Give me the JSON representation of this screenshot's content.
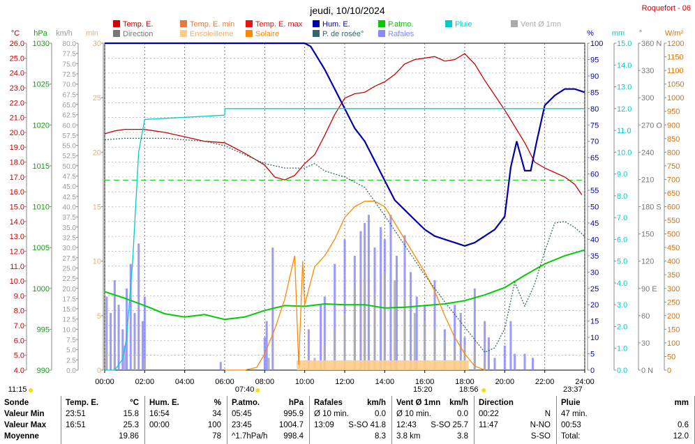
{
  "title": "jeudi, 10/10/2024",
  "station": "Roquefort - 06",
  "legend": [
    {
      "label": "Temp. E.",
      "color": "#cc0000"
    },
    {
      "label": "Temp. E. min",
      "color": "#e8783c"
    },
    {
      "label": "Temp. E. max",
      "color": "#ee1111"
    },
    {
      "label": "Hum. E.",
      "color": "#0000aa"
    },
    {
      "label": "P.atmo.",
      "color": "#00cc00"
    },
    {
      "label": "Pluie",
      "color": "#00cccc"
    },
    {
      "label": "Vent Ø 1mn",
      "color": "#aaaaaa"
    },
    {
      "label": "Direction",
      "color": "#777777"
    },
    {
      "label": "Ensoleilleme",
      "color": "#ffcc88"
    },
    {
      "label": "Solaire",
      "color": "#ff8800"
    },
    {
      "label": "P. de rosée°",
      "color": "#336666"
    },
    {
      "label": "Rafales",
      "color": "#8888ff"
    }
  ],
  "axis_units": {
    "temp": "°C",
    "pressure": "hPa",
    "wind": "km/h",
    "min": "min",
    "hum": "%",
    "rain": "mm",
    "dir": "°",
    "solar": "W/m²"
  },
  "chart_data": {
    "type": "line",
    "x_labels": [
      "00:00",
      "02:00",
      "04:00",
      "06:00",
      "08:00",
      "10:00",
      "12:00",
      "14:00",
      "16:00",
      "18:00",
      "20:00",
      "22:00",
      "24:00"
    ],
    "xlim": [
      0,
      24
    ],
    "axes": {
      "temp": {
        "ylim": [
          4,
          26
        ],
        "ticks": [
          "26.0",
          "25.0",
          "24.0",
          "23.0",
          "22.0",
          "21.0",
          "20.0",
          "19.0",
          "18.0",
          "17.0",
          "16.0",
          "15.0",
          "14.0",
          "13.0",
          "12.0",
          "11.0",
          "10.0",
          "9.0",
          "8.0",
          "7.0",
          "6.0",
          "5.0",
          "4.0"
        ]
      },
      "pressure": {
        "ylim": [
          990,
          1030
        ],
        "ticks": [
          "1030",
          "1025",
          "1020",
          "1015",
          "1010",
          "1005",
          "1000",
          "995",
          "990"
        ]
      },
      "wind": {
        "ylim": [
          0,
          80
        ],
        "ticks": [
          "80.0",
          "77.5",
          "75.0",
          "72.5",
          "70.0",
          "67.5",
          "65.0",
          "62.5",
          "60.0",
          "57.5",
          "55.0",
          "52.5",
          "50.0",
          "47.5",
          "45.0",
          "42.5",
          "40.0",
          "37.5",
          "35.0",
          "32.5",
          "30.0",
          "27.5",
          "25.0",
          "22.5",
          "20.0",
          "17.5",
          "15.0",
          "12.5",
          "10.0",
          "7.5",
          "5.0",
          "2.5",
          "0.0"
        ]
      },
      "minutes": {
        "ylim": [
          0,
          30
        ],
        "ticks": [
          "30",
          "25",
          "20",
          "15",
          "10",
          "5",
          "0"
        ]
      },
      "hum": {
        "ylim": [
          0,
          100
        ],
        "ticks": [
          "100",
          "95",
          "90",
          "85",
          "80",
          "75",
          "70",
          "65",
          "60",
          "55",
          "50",
          "45",
          "40",
          "35",
          "30",
          "25",
          "20",
          "15",
          "10",
          "5",
          "0"
        ]
      },
      "rain": {
        "ylim": [
          0,
          15
        ],
        "ticks": [
          "15.0",
          "14.0",
          "13.0",
          "12.0",
          "11.0",
          "10.0",
          "9.0",
          "8.0",
          "7.0",
          "6.0",
          "5.0",
          "4.0",
          "3.0",
          "2.0",
          "1.0",
          "0.0"
        ]
      },
      "dir": {
        "ylim": [
          0,
          360
        ],
        "ticks": [
          "360 N",
          "330",
          "300",
          "270 O",
          "240",
          "210",
          "180 S",
          "150",
          "120",
          "90 E",
          "60",
          "30",
          "0 N"
        ]
      },
      "solar": {
        "ylim": [
          0,
          1200
        ],
        "ticks": [
          "1200",
          "1150",
          "1100",
          "1050",
          "1000",
          "950",
          "900",
          "850",
          "800",
          "750",
          "700",
          "650",
          "600",
          "550",
          "500",
          "450",
          "400",
          "350",
          "300",
          "250",
          "200",
          "150",
          "100",
          "50",
          "0"
        ]
      }
    },
    "series": [
      {
        "name": "Temp. E.",
        "axis": "temp",
        "color": "#cc0000",
        "x": [
          0,
          0.5,
          1,
          1.5,
          2,
          2.5,
          3,
          4,
          5,
          6,
          7,
          8,
          8.5,
          9,
          9.5,
          10,
          10.5,
          11,
          11.5,
          12,
          12.5,
          13,
          13.5,
          14,
          14.5,
          15,
          15.5,
          16,
          16.5,
          17,
          17.5,
          18,
          18.5,
          19,
          20,
          20.5,
          21,
          21.5,
          22,
          22.5,
          23,
          23.5,
          23.85
        ],
        "y": [
          19.9,
          20.1,
          20.2,
          20.2,
          20.2,
          20.1,
          20.0,
          19.7,
          19.4,
          19.3,
          18.6,
          17.8,
          17.0,
          16.8,
          17.1,
          17.9,
          18.5,
          19.8,
          21.2,
          22.3,
          22.6,
          22.7,
          23.1,
          23.4,
          23.9,
          24.6,
          24.9,
          25.0,
          25.1,
          24.8,
          24.9,
          25.3,
          24.6,
          23.5,
          21.5,
          20.4,
          19.3,
          18.0,
          17.6,
          17.3,
          17.0,
          16.5,
          15.8
        ]
      },
      {
        "name": "Hum. E.",
        "axis": "hum",
        "color": "#0000aa",
        "x": [
          0,
          2,
          4,
          6,
          8,
          9,
          10,
          10.3,
          11,
          11.5,
          12,
          12.5,
          13,
          13.5,
          14,
          14.5,
          15,
          15.5,
          16,
          16.5,
          17,
          17.5,
          18,
          18.5,
          19,
          19.5,
          20,
          20.3,
          20.6,
          21,
          21.3,
          21.6,
          22,
          22.5,
          23,
          23.5,
          24
        ],
        "y": [
          100,
          100,
          100,
          100,
          100,
          100,
          100,
          99,
          92,
          86,
          80,
          74,
          70,
          64,
          58,
          52,
          49,
          46,
          43,
          41,
          40,
          39,
          38,
          39,
          41,
          43,
          47,
          62,
          70,
          61,
          61,
          70,
          81,
          84,
          86,
          86,
          85
        ]
      },
      {
        "name": "P.atmo.",
        "axis": "pressure",
        "color": "#00cc00",
        "x": [
          0,
          1,
          2,
          3,
          4,
          5,
          6,
          7,
          8,
          9,
          10,
          11,
          12,
          13,
          14,
          15,
          16,
          17,
          18,
          19,
          20,
          21,
          22,
          23,
          24
        ],
        "y": [
          999.6,
          998.8,
          997.9,
          996.9,
          996.5,
          996.8,
          996.2,
          996.5,
          997.3,
          997.9,
          997.8,
          998.1,
          998.0,
          998.0,
          997.6,
          997.7,
          997.9,
          998.1,
          998.5,
          999.2,
          1000.1,
          1001.6,
          1003.0,
          1004.0,
          1004.7
        ]
      },
      {
        "name": "Pluie",
        "axis": "rain",
        "color": "#00cccc",
        "x": [
          0,
          0.5,
          0.9,
          1.1,
          1.4,
          1.7,
          2.0,
          6.0,
          6.01,
          24
        ],
        "y": [
          0,
          0,
          0.5,
          1.5,
          5,
          10,
          11.5,
          11.7,
          12.0,
          12.0
        ]
      },
      {
        "name": "Solaire",
        "axis": "solar",
        "color": "#ff8800",
        "x": [
          6,
          7,
          7.6,
          8,
          8.5,
          9,
          9.5,
          9.7,
          9.9,
          10,
          10.5,
          11,
          11.5,
          12,
          12.5,
          13,
          13.5,
          14,
          14.5,
          15,
          15.5,
          16,
          16.5,
          17,
          17.5,
          18,
          18.5,
          19
        ],
        "y": [
          0,
          0,
          10,
          60,
          150,
          260,
          420,
          20,
          400,
          240,
          380,
          420,
          480,
          560,
          600,
          620,
          620,
          600,
          540,
          480,
          420,
          360,
          290,
          200,
          120,
          60,
          15,
          0
        ]
      },
      {
        "name": "P. de rosée°",
        "axis": "temp",
        "color": "#336666",
        "x": [
          0,
          1,
          2,
          3,
          4,
          5,
          6,
          7,
          8,
          9,
          10,
          10.5,
          11,
          12,
          13,
          14,
          15,
          16,
          17,
          18,
          19,
          19.5,
          20,
          20.5,
          21,
          21.5,
          22,
          22.5,
          23,
          23.5,
          24
        ],
        "y": [
          19.5,
          19.6,
          19.6,
          19.6,
          19.5,
          19.4,
          19.1,
          18.5,
          17.9,
          17.6,
          17.6,
          17.9,
          17.4,
          17.0,
          16.3,
          14.4,
          12.4,
          10.4,
          8.6,
          6.9,
          5.2,
          5.5,
          6.8,
          9.9,
          8.3,
          9.8,
          12.0,
          13.9,
          14.0,
          13.6,
          13.0
        ]
      }
    ],
    "bars": [
      {
        "name": "Rafales",
        "axis": "wind",
        "color": "#8888ff",
        "x": [
          0.1,
          0.3,
          0.5,
          0.7,
          0.9,
          1.1,
          1.3,
          1.5,
          1.7,
          1.9,
          2.0,
          5.8,
          8.0,
          8.1,
          8.4,
          10.2,
          10.8,
          11.0,
          11.5,
          12.0,
          12.5,
          12.8,
          13.0,
          13.2,
          13.5,
          13.8,
          14.0,
          14.3,
          14.6,
          15.0,
          15.3,
          15.6,
          16.0,
          16.5,
          17.0,
          17.5,
          17.8,
          18.0,
          18.5,
          19.0,
          19.2,
          19.5,
          20.0,
          20.3,
          20.5,
          21.0,
          21.4
        ],
        "y": [
          18,
          14,
          22,
          16,
          10,
          20,
          26,
          14,
          31,
          12,
          18,
          2,
          8,
          12,
          30,
          10,
          16,
          18,
          26,
          32,
          28,
          34,
          36,
          38,
          30,
          35,
          32,
          38,
          28,
          33,
          24,
          18,
          16,
          22,
          10,
          16,
          14,
          8,
          20,
          12,
          8,
          3,
          6,
          12,
          4,
          4,
          3
        ]
      },
      {
        "name": "Vent Ø 1mn",
        "axis": "wind",
        "color": "#aaaaaa",
        "x": [
          0.1,
          0.5,
          1.0,
          1.5,
          2.0,
          8.2,
          10.5,
          11.0,
          11.5,
          12.0,
          12.5,
          13.0,
          13.5,
          14.0,
          14.5,
          15.0,
          15.5,
          16.0,
          16.5,
          17.0,
          17.5,
          18.0,
          18.5,
          19.0
        ],
        "y": [
          5,
          3,
          6,
          4,
          3,
          3,
          3,
          6,
          10,
          14,
          20,
          22,
          19,
          24,
          22,
          18,
          14,
          12,
          10,
          8,
          6,
          6,
          5,
          2
        ]
      }
    ],
    "sunrise": "07:40",
    "sunset": "18:56",
    "solar_noon": "15:20",
    "axis_labels_bottom_left": "11:15",
    "moon": "23:37",
    "grid": true
  },
  "stats": {
    "sections": [
      {
        "title": "Sonde",
        "rows": [
          "Valeur Min",
          "Valeur Max",
          "Moyenne"
        ]
      },
      {
        "title": "Temp. E.",
        "unit": "°C",
        "rows": [
          [
            "23:51",
            "15.8"
          ],
          [
            "16:51",
            "25.3"
          ],
          [
            "",
            "19.86"
          ]
        ]
      },
      {
        "title": "Hum. E.",
        "unit": "%",
        "rows": [
          [
            "16:54",
            "34"
          ],
          [
            "00:00",
            "100"
          ],
          [
            "",
            "78"
          ]
        ]
      },
      {
        "title": "P.atmo.",
        "unit": "hPa",
        "rows": [
          [
            "05:45",
            "995.9"
          ],
          [
            "23:45",
            "1004.7"
          ],
          [
            "^1.7hPa/h",
            "998.4"
          ]
        ]
      },
      {
        "title": "Rafales",
        "unit": "km/h",
        "rows": [
          [
            "Ø 10 min.",
            "0.0"
          ],
          [
            "13:09",
            "S-SO 41.8"
          ],
          [
            "",
            "8.3"
          ]
        ]
      },
      {
        "title": "Vent Ø 1mn",
        "unit": "km/h",
        "rows": [
          [
            "Ø 10 min.",
            "0.0"
          ],
          [
            "12:43",
            "S-SO 25.7"
          ],
          [
            "3.8 km",
            "3.8"
          ]
        ]
      },
      {
        "title": "Direction",
        "unit": "",
        "rows": [
          [
            "00:22",
            "N"
          ],
          [
            "11:47",
            "N-NO"
          ],
          [
            "",
            "S-SO"
          ]
        ]
      },
      {
        "title": "Pluie",
        "unit": "mm",
        "rows": [
          [
            "47 min.",
            ""
          ],
          [
            "00:53",
            "0.6"
          ],
          [
            "Total:",
            "12.0"
          ]
        ]
      }
    ]
  }
}
